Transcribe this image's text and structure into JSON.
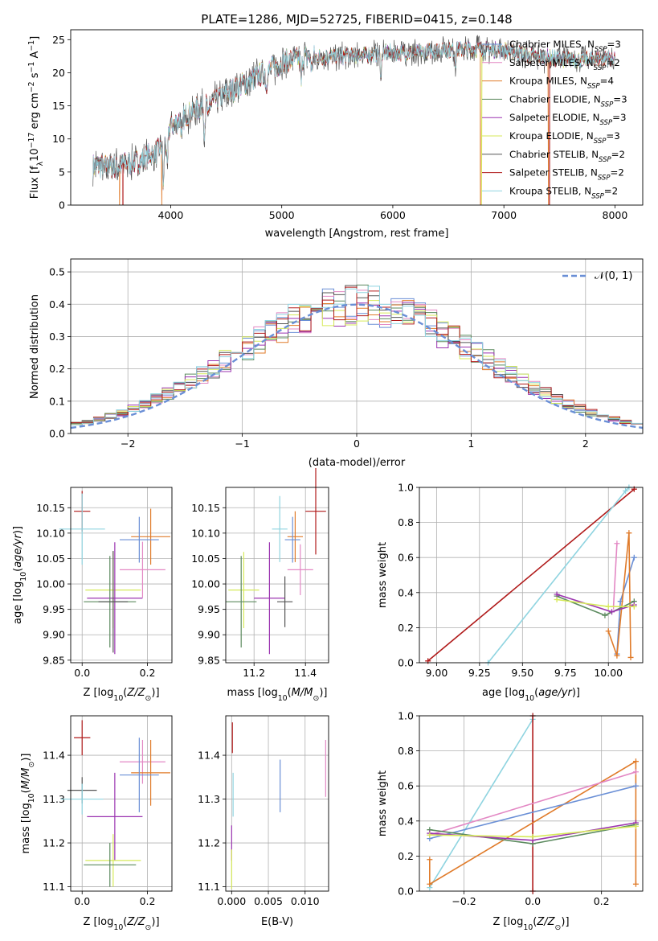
{
  "figure_title": "PLATE=1286, MJD=52725, FIBERID=0415, z=0.148",
  "colors": {
    "Chabrier MILES": "#6a8fd6",
    "Salpeter MILES": "#e388c4",
    "Kroupa MILES": "#e07b2a",
    "Chabrier ELODIE": "#5b8a5e",
    "Salpeter ELODIE": "#9b34b0",
    "Kroupa ELODIE": "#d6ea5a",
    "Chabrier STELIB": "#555555",
    "Salpeter STELIB": "#b01a1a",
    "Kroupa STELIB": "#8fd4e0",
    "gaussian": "#6a8fd6"
  },
  "chart_data": [
    {
      "id": "spectrum",
      "type": "line",
      "xlabel": "wavelength [Angstrom, rest frame]",
      "ylabel_parts": [
        "Flux [f",
        "λ",
        "10",
        "−17",
        " erg cm",
        "−2",
        " s",
        "−1",
        " A",
        "−1",
        "]"
      ],
      "xlim": [
        3100,
        8250
      ],
      "ylim": [
        0,
        26.5
      ],
      "xticks": [
        4000,
        5000,
        6000,
        7000,
        8000
      ],
      "yticks": [
        0,
        5,
        10,
        15,
        20,
        25
      ],
      "legend": [
        {
          "model": "Chabrier MILES",
          "text": "Chabrier MILES, N",
          "sub": "SSP",
          "tail": "=3"
        },
        {
          "model": "Salpeter MILES",
          "text": "Salpeter MILES, N",
          "sub": "SSP",
          "tail": "=2"
        },
        {
          "model": "Kroupa MILES",
          "text": "Kroupa MILES, N",
          "sub": "SSP",
          "tail": "=4"
        },
        {
          "model": "Chabrier ELODIE",
          "text": "Chabrier ELODIE, N",
          "sub": "SSP",
          "tail": "=3"
        },
        {
          "model": "Salpeter ELODIE",
          "text": "Salpeter ELODIE, N",
          "sub": "SSP",
          "tail": "=3"
        },
        {
          "model": "Kroupa ELODIE",
          "text": "Kroupa ELODIE, N",
          "sub": "SSP",
          "tail": "=3"
        },
        {
          "model": "Chabrier STELIB",
          "text": "Chabrier STELIB, N",
          "sub": "SSP",
          "tail": "=2"
        },
        {
          "model": "Salpeter STELIB",
          "text": "Salpeter STELIB, N",
          "sub": "SSP",
          "tail": "=2"
        },
        {
          "model": "Kroupa STELIB",
          "text": "Kroupa STELIB, N",
          "sub": "SSP",
          "tail": "=2"
        }
      ],
      "legend_position": "upper-right",
      "continuum": [
        [
          3300,
          5.9
        ],
        [
          3500,
          5.8
        ],
        [
          3700,
          6.6
        ],
        [
          3900,
          8.4
        ],
        [
          4000,
          12.0
        ],
        [
          4200,
          14.2
        ],
        [
          4400,
          15.8
        ],
        [
          4600,
          17.8
        ],
        [
          4800,
          19.6
        ],
        [
          5000,
          21.5
        ],
        [
          5200,
          22.4
        ],
        [
          5400,
          22.4
        ],
        [
          5600,
          22.5
        ],
        [
          5800,
          22.8
        ],
        [
          6000,
          23.1
        ],
        [
          6200,
          22.9
        ],
        [
          6400,
          23.4
        ],
        [
          6600,
          23.5
        ],
        [
          6800,
          23.6
        ],
        [
          7000,
          23.4
        ],
        [
          7200,
          22.7
        ],
        [
          7400,
          22.3
        ],
        [
          7600,
          22.0
        ],
        [
          7800,
          22.1
        ],
        [
          8000,
          22.3
        ]
      ],
      "absorption_lines": [
        [
          3934,
          7.0
        ],
        [
          3969,
          6.0
        ],
        [
          4101,
          3.0
        ],
        [
          4304,
          3.5
        ],
        [
          4340,
          2.5
        ],
        [
          4861,
          2.5
        ],
        [
          5175,
          4.0
        ],
        [
          5270,
          2.0
        ],
        [
          5893,
          3.0
        ],
        [
          6563,
          2.0
        ]
      ],
      "model_dropouts": [
        {
          "model": "Kroupa MILES",
          "x": 3540
        },
        {
          "model": "Salpeter STELIB",
          "x": 3570
        },
        {
          "model": "Kroupa MILES",
          "x": 3920
        },
        {
          "model": "Kroupa MILES",
          "x": 6790
        },
        {
          "model": "Kroupa ELODIE",
          "x": 6800
        },
        {
          "model": "Kroupa MILES",
          "x": 7400
        },
        {
          "model": "Salpeter STELIB",
          "x": 7410
        }
      ]
    },
    {
      "id": "residuals",
      "type": "histogram",
      "xlabel": "(data-model)/error",
      "ylabel": "Normed distribution",
      "xlim": [
        -2.5,
        2.5
      ],
      "ylim": [
        0,
        0.54
      ],
      "xticks": [
        -2,
        -1,
        0,
        1,
        2
      ],
      "xtick_labels": [
        "−2",
        "−1",
        "0",
        "1",
        "2"
      ],
      "yticks": [
        0.0,
        0.1,
        0.2,
        0.3,
        0.4,
        0.5
      ],
      "ytick_labels": [
        "0.0",
        "0.1",
        "0.2",
        "0.3",
        "0.4",
        "0.5"
      ],
      "grid": true,
      "bin_width": 0.1,
      "legend_label": "𝒩(0, 1)",
      "legend_position": "upper-right",
      "gaussian": {
        "mu": 0,
        "sigma": 1
      }
    },
    {
      "id": "age-vs-Z",
      "type": "errorbar",
      "xlabel": "Z [log10(Z/Z⊙)]",
      "ylabel": "age  [log10(age/yr)]",
      "xlim": [
        -0.035,
        0.275
      ],
      "ylim": [
        9.845,
        10.19
      ],
      "xticks": [
        0.0,
        0.2
      ],
      "xtick_labels": [
        "0.0",
        "0.2"
      ],
      "yticks": [
        9.85,
        9.9,
        9.95,
        10.0,
        10.05,
        10.1,
        10.15
      ],
      "ytick_labels": [
        "9.85",
        "9.90",
        "9.95",
        "10.00",
        "10.05",
        "10.10",
        "10.15"
      ],
      "points": [
        {
          "model": "Salpeter STELIB",
          "x": 0.0,
          "y": 10.143,
          "xerr": 0.025,
          "yerr": 0.04
        },
        {
          "model": "Kroupa STELIB",
          "x": 0.0,
          "y": 10.108,
          "xerr": 0.07,
          "yerr": 0.07
        },
        {
          "model": "Kroupa MILES",
          "x": 0.21,
          "y": 10.093,
          "xerr": 0.06,
          "yerr": 0.055
        },
        {
          "model": "Chabrier MILES",
          "x": 0.175,
          "y": 10.087,
          "xerr": 0.06,
          "yerr": 0.045
        },
        {
          "model": "Salpeter MILES",
          "x": 0.185,
          "y": 10.028,
          "xerr": 0.07,
          "yerr": 0.055
        },
        {
          "model": "Kroupa ELODIE",
          "x": 0.095,
          "y": 9.988,
          "xerr": 0.085,
          "yerr": 0.075
        },
        {
          "model": "Salpeter ELODIE",
          "x": 0.1,
          "y": 9.972,
          "xerr": 0.085,
          "yerr": 0.11
        },
        {
          "model": "Chabrier ELODIE",
          "x": 0.085,
          "y": 9.965,
          "xerr": 0.08,
          "yerr": 0.09
        },
        {
          "model": "Chabrier STELIB",
          "x": 0.095,
          "y": 9.965,
          "xerr": 0.045,
          "yerr": 0.1
        }
      ]
    },
    {
      "id": "age-vs-mass",
      "type": "errorbar",
      "xlabel": "mass [log10(M/M⊙)]",
      "xlim": [
        11.09,
        11.49
      ],
      "ylim": [
        9.845,
        10.19
      ],
      "xticks": [
        11.2,
        11.4
      ],
      "xtick_labels": [
        "11.2",
        "11.4"
      ],
      "yticks": [
        9.85,
        9.9,
        9.95,
        10.0,
        10.05,
        10.1,
        10.15
      ],
      "ytick_labels": [
        "9.85",
        "9.90",
        "9.95",
        "10.00",
        "10.05",
        "10.10",
        "10.15"
      ],
      "points": [
        {
          "model": "Salpeter STELIB",
          "x": 11.44,
          "y": 10.143,
          "xerr": 0.04,
          "yerr": 0.085
        },
        {
          "model": "Kroupa STELIB",
          "x": 11.3,
          "y": 10.108,
          "xerr": 0.03,
          "yerr": 0.065
        },
        {
          "model": "Kroupa MILES",
          "x": 11.36,
          "y": 10.093,
          "xerr": 0.03,
          "yerr": 0.05
        },
        {
          "model": "Chabrier MILES",
          "x": 11.35,
          "y": 10.087,
          "xerr": 0.03,
          "yerr": 0.045
        },
        {
          "model": "Salpeter MILES",
          "x": 11.38,
          "y": 10.028,
          "xerr": 0.05,
          "yerr": 0.05
        },
        {
          "model": "Kroupa ELODIE",
          "x": 11.16,
          "y": 9.988,
          "xerr": 0.06,
          "yerr": 0.075
        },
        {
          "model": "Salpeter ELODIE",
          "x": 11.26,
          "y": 9.972,
          "xerr": 0.06,
          "yerr": 0.11
        },
        {
          "model": "Chabrier ELODIE",
          "x": 11.15,
          "y": 9.965,
          "xerr": 0.06,
          "yerr": 0.09
        },
        {
          "model": "Chabrier STELIB",
          "x": 11.32,
          "y": 9.965,
          "xerr": 0.03,
          "yerr": 0.05
        }
      ]
    },
    {
      "id": "weight-vs-age",
      "type": "line",
      "xlabel": "age  [log10(age/yr)]",
      "ylabel": "mass weight",
      "xlim": [
        8.9,
        10.2
      ],
      "ylim": [
        0,
        1.0
      ],
      "xticks": [
        9.0,
        9.25,
        9.5,
        9.75,
        10.0
      ],
      "xtick_labels": [
        "9.00",
        "9.25",
        "9.50",
        "9.75",
        "10.00"
      ],
      "yticks": [
        0.0,
        0.2,
        0.4,
        0.6,
        0.8,
        1.0
      ],
      "ytick_labels": [
        "0.0",
        "0.2",
        "0.4",
        "0.6",
        "0.8",
        "1.0"
      ],
      "grid": true,
      "series": [
        {
          "model": "Salpeter STELIB",
          "points": [
            [
              8.95,
              0.01
            ],
            [
              10.15,
              0.99
            ]
          ]
        },
        {
          "model": "Kroupa STELIB",
          "points": [
            [
              9.3,
              0.0
            ],
            [
              10.1,
              0.98
            ],
            [
              10.12,
              1.0
            ]
          ]
        },
        {
          "model": "Chabrier MILES",
          "points": [
            [
              10.05,
              0.05
            ],
            [
              10.07,
              0.35
            ],
            [
              10.15,
              0.6
            ]
          ]
        },
        {
          "model": "Salpeter MILES",
          "points": [
            [
              10.03,
              0.32
            ],
            [
              10.05,
              0.68
            ]
          ]
        },
        {
          "model": "Kroupa MILES",
          "points": [
            [
              10.0,
              0.18
            ],
            [
              10.05,
              0.04
            ],
            [
              10.12,
              0.74
            ],
            [
              10.13,
              0.03
            ]
          ]
        },
        {
          "model": "Chabrier ELODIE",
          "points": [
            [
              9.7,
              0.38
            ],
            [
              9.98,
              0.27
            ],
            [
              10.15,
              0.35
            ]
          ]
        },
        {
          "model": "Salpeter ELODIE",
          "points": [
            [
              9.7,
              0.39
            ],
            [
              10.02,
              0.29
            ],
            [
              10.15,
              0.33
            ]
          ]
        },
        {
          "model": "Kroupa ELODIE",
          "points": [
            [
              9.7,
              0.36
            ],
            [
              10.0,
              0.32
            ],
            [
              10.15,
              0.32
            ]
          ]
        }
      ]
    },
    {
      "id": "mass-vs-Z",
      "type": "errorbar",
      "xlabel": "Z [log10(Z/Z⊙)]",
      "ylabel": "mass [log10(M/M⊙)]",
      "xlim": [
        -0.035,
        0.275
      ],
      "ylim": [
        11.09,
        11.49
      ],
      "xticks": [
        0.0,
        0.2
      ],
      "xtick_labels": [
        "0.0",
        "0.2"
      ],
      "yticks": [
        11.1,
        11.2,
        11.3,
        11.4
      ],
      "ytick_labels": [
        "11.1",
        "11.2",
        "11.3",
        "11.4"
      ],
      "points": [
        {
          "model": "Salpeter STELIB",
          "x": 0.0,
          "y": 11.44,
          "xerr": 0.025,
          "yerr": 0.04
        },
        {
          "model": "Salpeter MILES",
          "x": 0.185,
          "y": 11.385,
          "xerr": 0.07,
          "yerr": 0.05
        },
        {
          "model": "Kroupa MILES",
          "x": 0.21,
          "y": 11.36,
          "xerr": 0.06,
          "yerr": 0.075
        },
        {
          "model": "Chabrier MILES",
          "x": 0.175,
          "y": 11.355,
          "xerr": 0.06,
          "yerr": 0.085
        },
        {
          "model": "Chabrier STELIB",
          "x": 0.0,
          "y": 11.32,
          "xerr": 0.045,
          "yerr": 0.03
        },
        {
          "model": "Kroupa STELIB",
          "x": 0.0,
          "y": 11.3,
          "xerr": 0.065,
          "yerr": 0.035
        },
        {
          "model": "Salpeter ELODIE",
          "x": 0.1,
          "y": 11.26,
          "xerr": 0.085,
          "yerr": 0.1
        },
        {
          "model": "Kroupa ELODIE",
          "x": 0.095,
          "y": 11.16,
          "xerr": 0.085,
          "yerr": 0.06
        },
        {
          "model": "Chabrier ELODIE",
          "x": 0.085,
          "y": 11.15,
          "xerr": 0.08,
          "yerr": 0.05
        }
      ]
    },
    {
      "id": "mass-vs-ebv",
      "type": "errorbar",
      "xlabel": "E(B-V)",
      "xlim": [
        -0.0008,
        0.0132
      ],
      "ylim": [
        11.09,
        11.49
      ],
      "xticks": [
        0.0,
        0.005,
        0.01
      ],
      "xtick_labels": [
        "0.000",
        "0.005",
        "0.010"
      ],
      "yticks": [
        11.1,
        11.2,
        11.3,
        11.4
      ],
      "ytick_labels": [
        "11.1",
        "11.2",
        "11.3",
        "11.4"
      ],
      "points": [
        {
          "model": "Salpeter STELIB",
          "x": 0.0001,
          "y": 11.44,
          "yerr": 0.035
        },
        {
          "model": "Chabrier MILES",
          "x": 0.0066,
          "y": 11.33,
          "yerr": 0.06
        },
        {
          "model": "Salpeter MILES",
          "x": 0.0128,
          "y": 11.37,
          "yerr": 0.065
        },
        {
          "model": "Kroupa STELIB",
          "x": 0.0002,
          "y": 11.31,
          "yerr": 0.05
        },
        {
          "model": "Salpeter ELODIE",
          "x": 0.0,
          "y": 11.2,
          "yerr": 0.04
        },
        {
          "model": "Kroupa ELODIE",
          "x": 0.0,
          "y": 11.14,
          "yerr": 0.045
        }
      ]
    },
    {
      "id": "weight-vs-Z",
      "type": "line",
      "xlabel": "Z [log10(Z/Z⊙)]",
      "ylabel": "mass weight",
      "xlim": [
        -0.33,
        0.32
      ],
      "ylim": [
        0,
        1.0
      ],
      "xticks": [
        -0.2,
        0.0,
        0.2
      ],
      "xtick_labels": [
        "−0.2",
        "0.0",
        "0.2"
      ],
      "yticks": [
        0.0,
        0.2,
        0.4,
        0.6,
        0.8,
        1.0
      ],
      "ytick_labels": [
        "0.0",
        "0.2",
        "0.4",
        "0.6",
        "0.8",
        "1.0"
      ],
      "grid": true,
      "series": [
        {
          "model": "Kroupa STELIB",
          "points": [
            [
              -0.3,
              0.02
            ],
            [
              0.0,
              0.98
            ],
            [
              0.0,
              1.0
            ]
          ]
        },
        {
          "model": "Salpeter STELIB",
          "points": [
            [
              0.0,
              1.0
            ],
            [
              0.0,
              0.0
            ]
          ]
        },
        {
          "model": "Kroupa MILES",
          "points": [
            [
              -0.3,
              0.18
            ],
            [
              -0.3,
              0.04
            ],
            [
              0.3,
              0.74
            ],
            [
              0.3,
              0.04
            ]
          ]
        },
        {
          "model": "Chabrier MILES",
          "points": [
            [
              -0.3,
              0.3
            ],
            [
              0.3,
              0.6
            ]
          ]
        },
        {
          "model": "Salpeter MILES",
          "points": [
            [
              -0.3,
              0.32
            ],
            [
              0.3,
              0.68
            ]
          ]
        },
        {
          "model": "Chabrier ELODIE",
          "points": [
            [
              -0.3,
              0.35
            ],
            [
              0.0,
              0.27
            ],
            [
              0.3,
              0.38
            ]
          ]
        },
        {
          "model": "Salpeter ELODIE",
          "points": [
            [
              -0.3,
              0.33
            ],
            [
              0.0,
              0.29
            ],
            [
              0.3,
              0.39
            ]
          ]
        },
        {
          "model": "Kroupa ELODIE",
          "points": [
            [
              -0.3,
              0.32
            ],
            [
              0.0,
              0.31
            ],
            [
              0.3,
              0.37
            ]
          ]
        }
      ]
    }
  ]
}
